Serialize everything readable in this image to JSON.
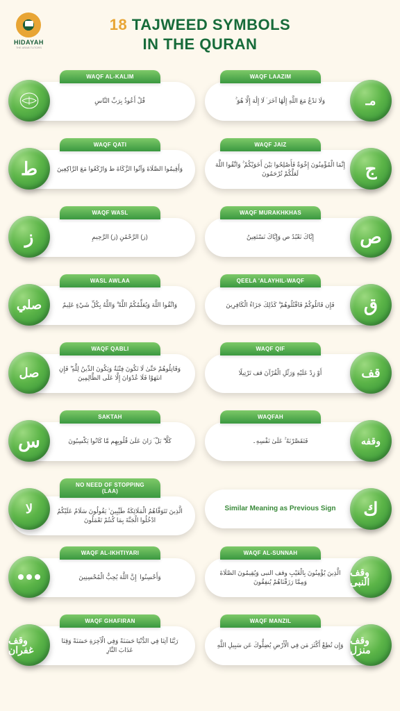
{
  "logo": {
    "name": "HIDAYAH",
    "tag": "THE ARAB TUTORS"
  },
  "title": {
    "accent": "18",
    "rest_line1": "TAJWEED SYMBOLS",
    "line2": "IN THE QURAN"
  },
  "colors": {
    "background": "#fdf8ed",
    "green_dark": "#176b3a",
    "green_mid": "#3a9840",
    "green_light": "#7dc968",
    "accent": "#e8a535"
  },
  "items": [
    {
      "side": "left",
      "label": "WAQF AL-KALIM",
      "symbol_type": "svg-book",
      "example": "قُلْ أَعُوذُ بِرَبِّ النَّاسِ",
      "highlight": "◯"
    },
    {
      "side": "right",
      "label": "WAQF LAAZIM",
      "symbol": "مـ",
      "example": "وَلَا تَدْعُ مَعَ اللَّهِ إِلَٰهًا آخَرَ ۘ لَا إِلَٰهَ إِلَّا هُوَ ۚ"
    },
    {
      "side": "left",
      "label": "WAQF QATI",
      "symbol": "ط",
      "example": "وَأَقِيمُوا الصَّلَاةَ وَآتُوا الزَّكَاةَ ط وَارْكَعُوا مَعَ الرَّاكِعِينَ"
    },
    {
      "side": "right",
      "label": "WAQF JAIZ",
      "symbol": "ج",
      "example": "إِنَّمَا الْمُؤْمِنُونَ إِخْوَةٌ فَأَصْلِحُوا بَيْنَ أَخَوَيْكُمْ ۚ وَاتَّقُوا اللَّهَ لَعَلَّكُمْ تُرْحَمُونَ"
    },
    {
      "side": "left",
      "label": "WAQF WASL",
      "symbol": "ز",
      "example": "(ز) الرَّحْمَٰنِ (ز) الرَّحِيمِ"
    },
    {
      "side": "right",
      "label": "WAQF MURAKHKHAS",
      "symbol": "ص",
      "example": "إِيَّاكَ نَعْبُدُ ص وَإِيَّاكَ نَسْتَعِينُ"
    },
    {
      "side": "left",
      "label": "WASL AWLAA",
      "symbol": "صلي",
      "example": "وَاتَّقُوا اللَّهَ وَيُعَلِّمُكُمُ اللَّهُ ۗ وَاللَّهُ بِكُلِّ شَيْءٍ عَلِيمٌ"
    },
    {
      "side": "right",
      "label": "QEELA 'ALAYHIL-WAQF",
      "symbol": "ق",
      "example": "فَإِن قَاتَلُوكُمْ فَاقْتُلُوهُمْ ۗ كَذَٰلِكَ جَزَاءُ الْكَافِرِينَ"
    },
    {
      "side": "left",
      "label": "WAQF QABLI",
      "symbol": "صل",
      "example": "وَقَاتِلُوهُمْ حَتَّىٰ لَا تَكُونَ فِتْنَةٌ وَيَكُونَ الدِّينُ لِلَّهِ ۖ فَإِنِ انتَهَوْا فَلَا عُدْوَانَ إِلَّا عَلَى الظَّالِمِينَ"
    },
    {
      "side": "right",
      "label": "WAQF QIF",
      "symbol": "قف",
      "example": "أَوْ زِدْ عَلَيْهِ وَرَتِّلِ الْقُرْآنَ قف تَرْتِيلًا"
    },
    {
      "side": "left",
      "label": "SAKTAH",
      "symbol": "س",
      "example": "كَلَّا ۖ بَلْ ۜ رَانَ عَلَىٰ قُلُوبِهِم مَّا كَانُوا يَكْسِبُونَ"
    },
    {
      "side": "right",
      "label": "WAQFAH",
      "symbol": "وقفه",
      "example": "فَتَقَصَّرْنَهُ ۚ عَلَىٰ نَفْسِهِ۔"
    },
    {
      "side": "left",
      "label": "NO NEED OF STOPPING (LAA)",
      "symbol": "لا",
      "example": "الَّذِينَ تَتَوَفَّاهُمُ الْمَلَائِكَةُ طَيِّبِينَ ۙ يَقُولُونَ سَلَامٌ عَلَيْكُمُ ادْخُلُوا الْجَنَّةَ بِمَا كُنتُمْ تَعْمَلُونَ"
    },
    {
      "side": "right",
      "label": "",
      "symbol": "ك",
      "plain": "Similar Meaning as Previous Sign"
    },
    {
      "side": "left",
      "label": "WAQF AL-IKHTIYARI",
      "symbol_type": "dots",
      "example": "وَأَحْسِنُوا ۛ إِنَّ اللَّهَ يُحِبُّ الْمُحْسِنِينَ"
    },
    {
      "side": "right",
      "label": "WAQF AL-SUNNAH",
      "symbol": "وقف النبى",
      "example": "الَّذِينَ يُؤْمِنُونَ بِالْغَيْبِ وقف النبى وَيُقِيمُونَ الصَّلَاةَ وَمِمَّا رَزَقْنَاهُمْ يُنفِقُونَ"
    },
    {
      "side": "left",
      "label": "WAQF GHAFIRAN",
      "symbol": "وقف غفران",
      "example": "رَبَّنَا آتِنَا فِي الدُّنْيَا حَسَنَةً وَفِي الْآخِرَةِ حَسَنَةً وَقِنَا عَذَابَ النَّارِ"
    },
    {
      "side": "right",
      "label": "WAQF MANZIL",
      "symbol": "وقف منزل",
      "example": "وَإِن تُطِعْ أَكْثَرَ مَن فِي الْأَرْضِ يُضِلُّوكَ عَن سَبِيلِ اللَّهِ"
    }
  ]
}
